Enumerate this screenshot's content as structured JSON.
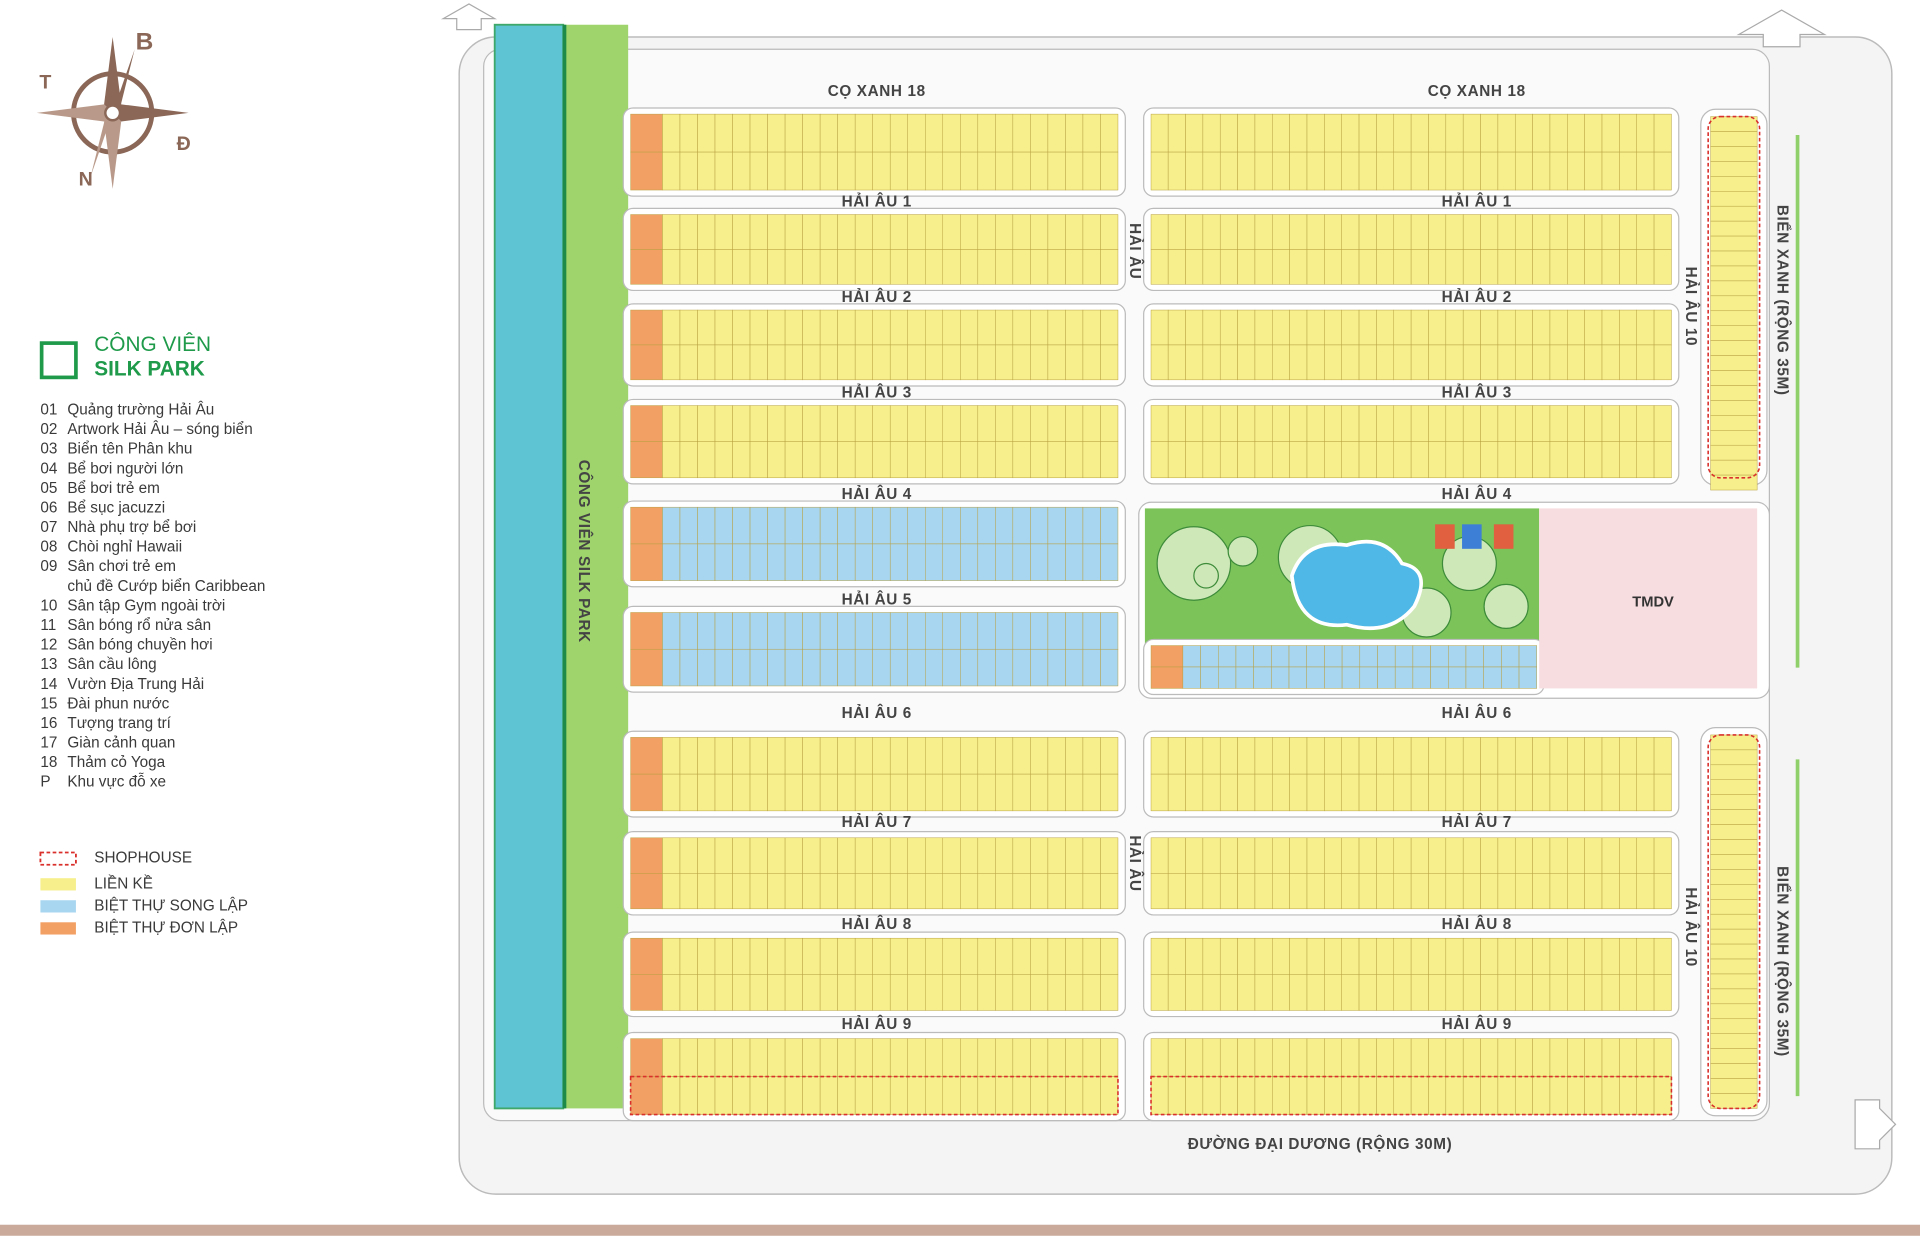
{
  "compass": {
    "north": "B",
    "south": "N",
    "west": "T",
    "east": "Đ"
  },
  "park_legend": {
    "line1": "CÔNG VIÊN",
    "line2": "SILK PARK"
  },
  "amenities": [
    {
      "code": "01",
      "lines": [
        "Quảng trường Hải Âu"
      ]
    },
    {
      "code": "02",
      "lines": [
        "Artwork Hải Âu – sóng biển"
      ]
    },
    {
      "code": "03",
      "lines": [
        "Biển tên Phân khu"
      ]
    },
    {
      "code": "04",
      "lines": [
        "Bể bơi người lớn"
      ]
    },
    {
      "code": "05",
      "lines": [
        "Bể bơi trẻ em"
      ]
    },
    {
      "code": "06",
      "lines": [
        "Bể sục jacuzzi"
      ]
    },
    {
      "code": "07",
      "lines": [
        "Nhà phụ trợ bể bơi"
      ]
    },
    {
      "code": "08",
      "lines": [
        "Chòi nghỉ Hawaii"
      ]
    },
    {
      "code": "09",
      "lines": [
        "Sân chơi trẻ em",
        "chủ đề Cướp biển Caribbean"
      ]
    },
    {
      "code": "10",
      "lines": [
        "Sân tập Gym ngoài trời"
      ]
    },
    {
      "code": "11",
      "lines": [
        "Sân bóng rổ nửa sân"
      ]
    },
    {
      "code": "12",
      "lines": [
        "Sân bóng chuyền hơi"
      ]
    },
    {
      "code": "13",
      "lines": [
        "Sân cầu lông"
      ]
    },
    {
      "code": "14",
      "lines": [
        "Vườn Địa Trung Hải"
      ]
    },
    {
      "code": "15",
      "lines": [
        "Đài phun nước"
      ]
    },
    {
      "code": "16",
      "lines": [
        "Tượng trang trí"
      ]
    },
    {
      "code": "17",
      "lines": [
        "Giàn cảnh quan"
      ]
    },
    {
      "code": "18",
      "lines": [
        "Thảm cỏ Yoga"
      ]
    },
    {
      "code": "P",
      "lines": [
        "Khu vực đỗ xe"
      ]
    }
  ],
  "lot_types": [
    {
      "label": "SHOPHOUSE",
      "color": "#d9302c"
    },
    {
      "label": "LIỀN KỀ",
      "color": "#f6ef8c"
    },
    {
      "label": "BIỆT THỰ SONG LẬP",
      "color": "#a8d6f0"
    },
    {
      "label": "BIỆT THỰ ĐƠN LẬP",
      "color": "#f2a064"
    }
  ],
  "road_labels": [
    "CỌ XANH 18",
    "CỌ XANH 18",
    "HẢI ÂU 1",
    "HẢI ÂU 1",
    "HẢI ÂU 2",
    "HẢI ÂU 2",
    "HẢI ÂU 3",
    "HẢI ÂU 3",
    "HẢI ÂU 4",
    "HẢI ÂU 4",
    "HẢI ÂU 5",
    "HẢI ÂU 6",
    "HẢI ÂU 6",
    "HẢI ÂU 7",
    "HẢI ÂU 7",
    "HẢI ÂU 8",
    "HẢI ÂU 8",
    "HẢI ÂU 9",
    "HẢI ÂU 9",
    "ĐƯỜNG ĐẠI DƯƠNG (RỘNG 30M)"
  ],
  "vertical_labels": [
    "HẢI ÂU",
    "HẢI ÂU",
    "HẢI ÂU 10",
    "HẢI ÂU 10",
    "BIỂN XANH (RỘNG 35M)",
    "BIỂN XANH (RỘNG 35M)",
    "CÔNG VIÊN SILK PARK"
  ],
  "commercial_label": "TMDV"
}
